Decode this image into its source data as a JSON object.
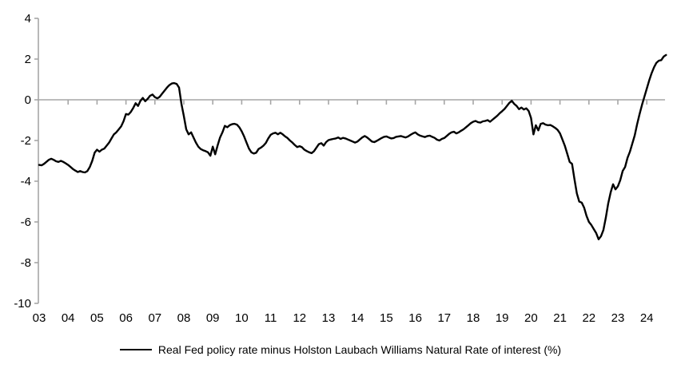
{
  "chart_data": {
    "type": "line",
    "title": "",
    "xlabel": "",
    "ylabel": "",
    "legend_position": "bottom-center",
    "grid": "zero-line-only",
    "ylim": [
      -10,
      4
    ],
    "yticks": [
      4,
      2,
      0,
      -2,
      -4,
      -6,
      -8,
      -10
    ],
    "xlim": [
      2003,
      2024.83
    ],
    "xticklabels": [
      "03",
      "04",
      "05",
      "06",
      "07",
      "08",
      "09",
      "10",
      "11",
      "12",
      "13",
      "14",
      "15",
      "16",
      "17",
      "18",
      "19",
      "20",
      "21",
      "22",
      "23",
      "24"
    ],
    "colors": {
      "series": "#000000",
      "axis": "#a6a6a6",
      "text": "#000000",
      "background": "#ffffff"
    },
    "series": [
      {
        "name": "Real Fed policy rate minus Holston Laubach Williams Natural Rate of interest (%)",
        "start_year": 2003,
        "points_per_year": 12,
        "values": [
          -3.2,
          -3.22,
          -3.15,
          -3.05,
          -2.95,
          -2.9,
          -2.95,
          -3.02,
          -3.05,
          -3.0,
          -3.05,
          -3.12,
          -3.2,
          -3.3,
          -3.4,
          -3.48,
          -3.55,
          -3.5,
          -3.55,
          -3.57,
          -3.5,
          -3.3,
          -3.0,
          -2.6,
          -2.45,
          -2.55,
          -2.45,
          -2.4,
          -2.25,
          -2.1,
          -1.9,
          -1.7,
          -1.6,
          -1.45,
          -1.3,
          -1.05,
          -0.7,
          -0.73,
          -0.6,
          -0.4,
          -0.17,
          -0.3,
          -0.05,
          0.09,
          -0.07,
          0.05,
          0.2,
          0.26,
          0.13,
          0.07,
          0.15,
          0.3,
          0.45,
          0.6,
          0.72,
          0.8,
          0.82,
          0.78,
          0.6,
          -0.2,
          -0.8,
          -1.45,
          -1.7,
          -1.6,
          -1.85,
          -2.1,
          -2.3,
          -2.42,
          -2.48,
          -2.52,
          -2.58,
          -2.75,
          -2.3,
          -2.68,
          -2.25,
          -1.85,
          -1.6,
          -1.28,
          -1.35,
          -1.25,
          -1.2,
          -1.18,
          -1.22,
          -1.35,
          -1.55,
          -1.8,
          -2.1,
          -2.4,
          -2.58,
          -2.64,
          -2.6,
          -2.42,
          -2.35,
          -2.25,
          -2.12,
          -1.9,
          -1.72,
          -1.65,
          -1.62,
          -1.7,
          -1.62,
          -1.7,
          -1.8,
          -1.88,
          -2.0,
          -2.1,
          -2.22,
          -2.32,
          -2.28,
          -2.33,
          -2.45,
          -2.52,
          -2.58,
          -2.62,
          -2.52,
          -2.35,
          -2.18,
          -2.13,
          -2.25,
          -2.08,
          -1.98,
          -1.95,
          -1.92,
          -1.9,
          -1.85,
          -1.92,
          -1.87,
          -1.9,
          -1.95,
          -2.0,
          -2.05,
          -2.1,
          -2.05,
          -1.95,
          -1.85,
          -1.78,
          -1.85,
          -1.95,
          -2.05,
          -2.08,
          -2.02,
          -1.95,
          -1.88,
          -1.82,
          -1.8,
          -1.85,
          -1.9,
          -1.88,
          -1.82,
          -1.8,
          -1.78,
          -1.82,
          -1.85,
          -1.8,
          -1.72,
          -1.65,
          -1.6,
          -1.7,
          -1.76,
          -1.8,
          -1.83,
          -1.78,
          -1.76,
          -1.82,
          -1.87,
          -1.96,
          -2.0,
          -1.92,
          -1.88,
          -1.78,
          -1.68,
          -1.6,
          -1.57,
          -1.65,
          -1.6,
          -1.52,
          -1.45,
          -1.35,
          -1.25,
          -1.15,
          -1.08,
          -1.04,
          -1.1,
          -1.12,
          -1.06,
          -1.04,
          -1.0,
          -1.08,
          -0.98,
          -0.88,
          -0.78,
          -0.66,
          -0.56,
          -0.45,
          -0.3,
          -0.15,
          -0.05,
          -0.2,
          -0.3,
          -0.46,
          -0.38,
          -0.48,
          -0.42,
          -0.55,
          -0.9,
          -1.7,
          -1.25,
          -1.5,
          -1.18,
          -1.15,
          -1.22,
          -1.25,
          -1.24,
          -1.3,
          -1.38,
          -1.48,
          -1.65,
          -1.95,
          -2.25,
          -2.65,
          -3.05,
          -3.15,
          -3.9,
          -4.6,
          -5.0,
          -5.05,
          -5.3,
          -5.7,
          -6.0,
          -6.15,
          -6.35,
          -6.55,
          -6.85,
          -6.7,
          -6.4,
          -5.8,
          -5.1,
          -4.55,
          -4.15,
          -4.4,
          -4.25,
          -3.95,
          -3.5,
          -3.3,
          -2.85,
          -2.55,
          -2.15,
          -1.75,
          -1.2,
          -0.7,
          -0.25,
          0.15,
          0.55,
          0.95,
          1.3,
          1.6,
          1.82,
          1.92,
          1.95,
          2.12,
          2.2
        ]
      }
    ]
  },
  "legend": {
    "label": "Real Fed policy rate minus Holston Laubach Williams Natural Rate of interest (%)"
  }
}
